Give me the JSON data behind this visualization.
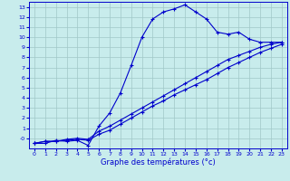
{
  "xlabel": "Graphe des températures (°c)",
  "bg_color": "#c8ecec",
  "line_color": "#0000cc",
  "grid_color": "#a0c8c8",
  "xlim": [
    -0.5,
    23.5
  ],
  "ylim": [
    -1.0,
    13.5
  ],
  "xticks": [
    0,
    1,
    2,
    3,
    4,
    5,
    6,
    7,
    8,
    9,
    10,
    11,
    12,
    13,
    14,
    15,
    16,
    17,
    18,
    19,
    20,
    21,
    22,
    23
  ],
  "yticks": [
    0,
    1,
    2,
    3,
    4,
    5,
    6,
    7,
    8,
    9,
    10,
    11,
    12,
    13
  ],
  "ytick_labels": [
    "-0",
    "1",
    "2",
    "3",
    "4",
    "5",
    "6",
    "7",
    "8",
    "9",
    "10",
    "11",
    "12",
    "13"
  ],
  "curve1_x": [
    0,
    1,
    2,
    3,
    4,
    5,
    6,
    7,
    8,
    9,
    10,
    11,
    12,
    13,
    14,
    15,
    16,
    17,
    18,
    19,
    20,
    21,
    22,
    23
  ],
  "curve1_y": [
    -0.5,
    -0.5,
    -0.2,
    -0.3,
    -0.2,
    -0.7,
    1.2,
    2.5,
    4.5,
    7.2,
    10.0,
    11.8,
    12.5,
    12.8,
    13.2,
    12.5,
    11.8,
    10.5,
    10.3,
    10.5,
    9.8,
    9.5,
    9.5,
    9.5
  ],
  "curve2_x": [
    0,
    1,
    2,
    3,
    4,
    5,
    6,
    7,
    8,
    9,
    10,
    11,
    12,
    13,
    14,
    15,
    16,
    17,
    18,
    19,
    20,
    21,
    22,
    23
  ],
  "curve2_y": [
    -0.5,
    -0.3,
    -0.3,
    -0.1,
    0.0,
    -0.1,
    0.7,
    1.2,
    1.8,
    2.4,
    3.0,
    3.6,
    4.2,
    4.8,
    5.4,
    6.0,
    6.6,
    7.2,
    7.8,
    8.2,
    8.6,
    9.0,
    9.3,
    9.5
  ],
  "curve3_x": [
    0,
    1,
    2,
    3,
    4,
    5,
    6,
    7,
    8,
    9,
    10,
    11,
    12,
    13,
    14,
    15,
    16,
    17,
    18,
    19,
    20,
    21,
    22,
    23
  ],
  "curve3_y": [
    -0.5,
    -0.3,
    -0.3,
    -0.2,
    -0.1,
    -0.2,
    0.4,
    0.8,
    1.4,
    2.0,
    2.6,
    3.2,
    3.7,
    4.3,
    4.8,
    5.3,
    5.8,
    6.4,
    7.0,
    7.5,
    8.0,
    8.5,
    8.9,
    9.3
  ]
}
